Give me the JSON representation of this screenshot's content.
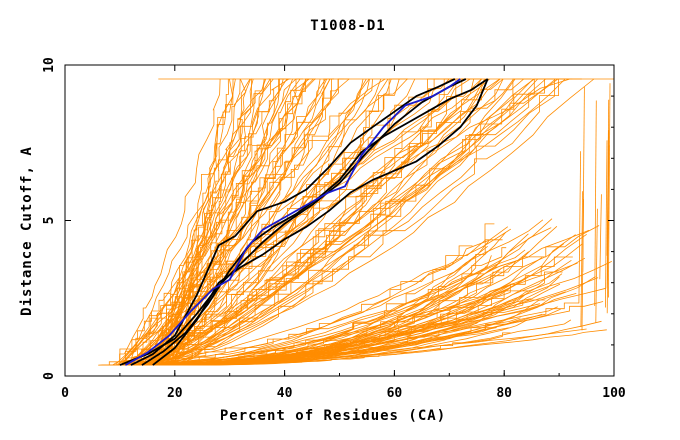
{
  "chart_data": {
    "type": "line",
    "title": "T1008-D1",
    "xlabel": "Percent of Residues (CA)",
    "ylabel": "Distance Cutoff, A",
    "xlim": [
      0,
      100
    ],
    "ylim": [
      0,
      10
    ],
    "x_ticks": [
      "0",
      "20",
      "40",
      "60",
      "80",
      "100"
    ],
    "y_ticks": [
      "0",
      "5",
      "10"
    ],
    "grid": false,
    "colors": {
      "background_models": "#ff8c00",
      "highlight_black": "#000000",
      "highlight_blue": "#1a1acd",
      "axes": "#000000"
    },
    "highlighted_series": [
      {
        "color": "#000000",
        "x": [
          10,
          15,
          20,
          24,
          28,
          32,
          36,
          40,
          45,
          50,
          55,
          60,
          65,
          70,
          73
        ],
        "y": [
          0.35,
          0.7,
          1.2,
          2.0,
          2.9,
          3.6,
          4.3,
          4.9,
          5.5,
          6.2,
          7.2,
          8.1,
          8.8,
          9.3,
          9.55
        ]
      },
      {
        "color": "#000000",
        "x": [
          14,
          18,
          22,
          26,
          30,
          34,
          38,
          42,
          46,
          50,
          54,
          58,
          62,
          66,
          70,
          74,
          77
        ],
        "y": [
          0.35,
          0.8,
          1.4,
          2.3,
          3.4,
          4.3,
          4.8,
          5.2,
          5.7,
          6.3,
          7.2,
          7.7,
          8.1,
          8.5,
          8.9,
          9.2,
          9.55
        ]
      },
      {
        "color": "#000000",
        "x": [
          16,
          20,
          24,
          28,
          32,
          36,
          40,
          44,
          48,
          52,
          56,
          60,
          64,
          68,
          72,
          75,
          77
        ],
        "y": [
          0.35,
          0.9,
          1.8,
          3.0,
          3.5,
          3.9,
          4.4,
          4.8,
          5.3,
          5.9,
          6.3,
          6.6,
          6.9,
          7.4,
          8.0,
          8.7,
          9.55
        ]
      },
      {
        "color": "#000000",
        "x": [
          12,
          16,
          20,
          24,
          28,
          31,
          35,
          40,
          44,
          48,
          52,
          56,
          60,
          64,
          68,
          71
        ],
        "y": [
          0.35,
          0.7,
          1.3,
          2.6,
          4.2,
          4.5,
          5.3,
          5.6,
          6.0,
          6.7,
          7.5,
          8.0,
          8.5,
          9.0,
          9.3,
          9.55
        ]
      },
      {
        "color": "#1a1acd",
        "x": [
          11,
          15,
          19,
          23,
          27,
          30,
          33,
          36,
          40,
          44,
          48,
          51,
          54,
          58,
          62,
          67,
          70,
          72
        ],
        "y": [
          0.35,
          0.75,
          1.3,
          2.1,
          2.8,
          3.1,
          4.1,
          4.7,
          5.1,
          5.5,
          5.9,
          6.1,
          7.1,
          8.0,
          8.7,
          9.0,
          9.3,
          9.55
        ]
      }
    ]
  }
}
